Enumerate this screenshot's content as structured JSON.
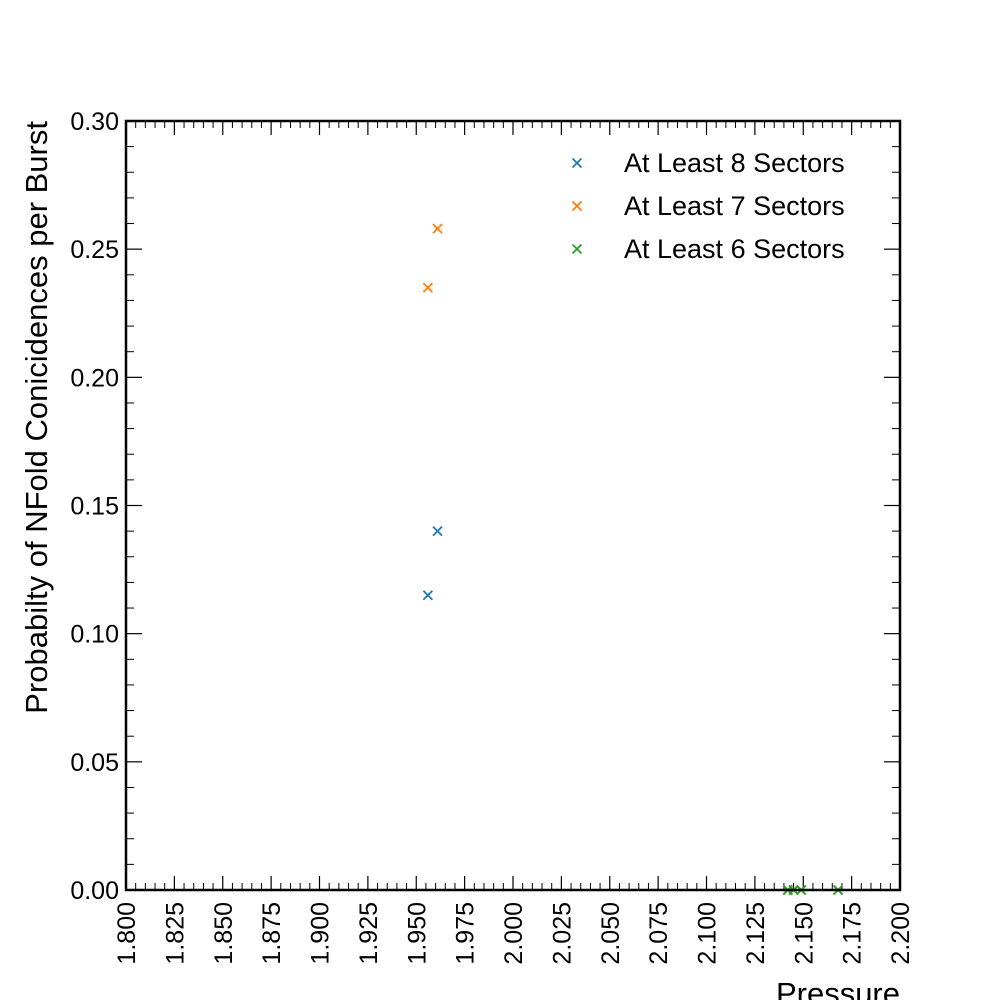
{
  "chart_data": {
    "type": "scatter",
    "title": "",
    "xlabel": "Pressure",
    "ylabel": "Probabilty of NFold Conicidences per Burst",
    "xlim": [
      1.8,
      2.2
    ],
    "ylim": [
      0.0,
      0.3
    ],
    "x_ticks": [
      "1.800",
      "1.825",
      "1.850",
      "1.875",
      "1.900",
      "1.925",
      "1.950",
      "1.975",
      "2.000",
      "2.025",
      "2.050",
      "2.075",
      "2.100",
      "2.125",
      "2.150",
      "2.175",
      "2.200"
    ],
    "y_ticks": [
      "0.00",
      "0.05",
      "0.10",
      "0.15",
      "0.20",
      "0.25",
      "0.30"
    ],
    "grid": false,
    "legend_position": "top-right",
    "marker": "x",
    "series": [
      {
        "name": "At Least 8 Sectors",
        "color": "#1f77b4",
        "points": [
          [
            1.956,
            0.115
          ],
          [
            1.961,
            0.14
          ],
          [
            2.142,
            0.0
          ],
          [
            2.145,
            0.0
          ],
          [
            2.149,
            0.0
          ],
          [
            2.168,
            0.0
          ]
        ]
      },
      {
        "name": "At Least 7 Sectors",
        "color": "#ff7f0e",
        "points": [
          [
            1.956,
            0.235
          ],
          [
            1.961,
            0.258
          ],
          [
            2.142,
            0.0
          ],
          [
            2.145,
            0.0
          ],
          [
            2.149,
            0.0
          ],
          [
            2.168,
            0.0
          ]
        ]
      },
      {
        "name": "At Least 6 Sectors",
        "color": "#2ca02c",
        "points": [
          [
            2.142,
            0.0
          ],
          [
            2.145,
            0.0
          ],
          [
            2.149,
            0.0
          ],
          [
            2.168,
            0.0
          ]
        ]
      }
    ]
  }
}
